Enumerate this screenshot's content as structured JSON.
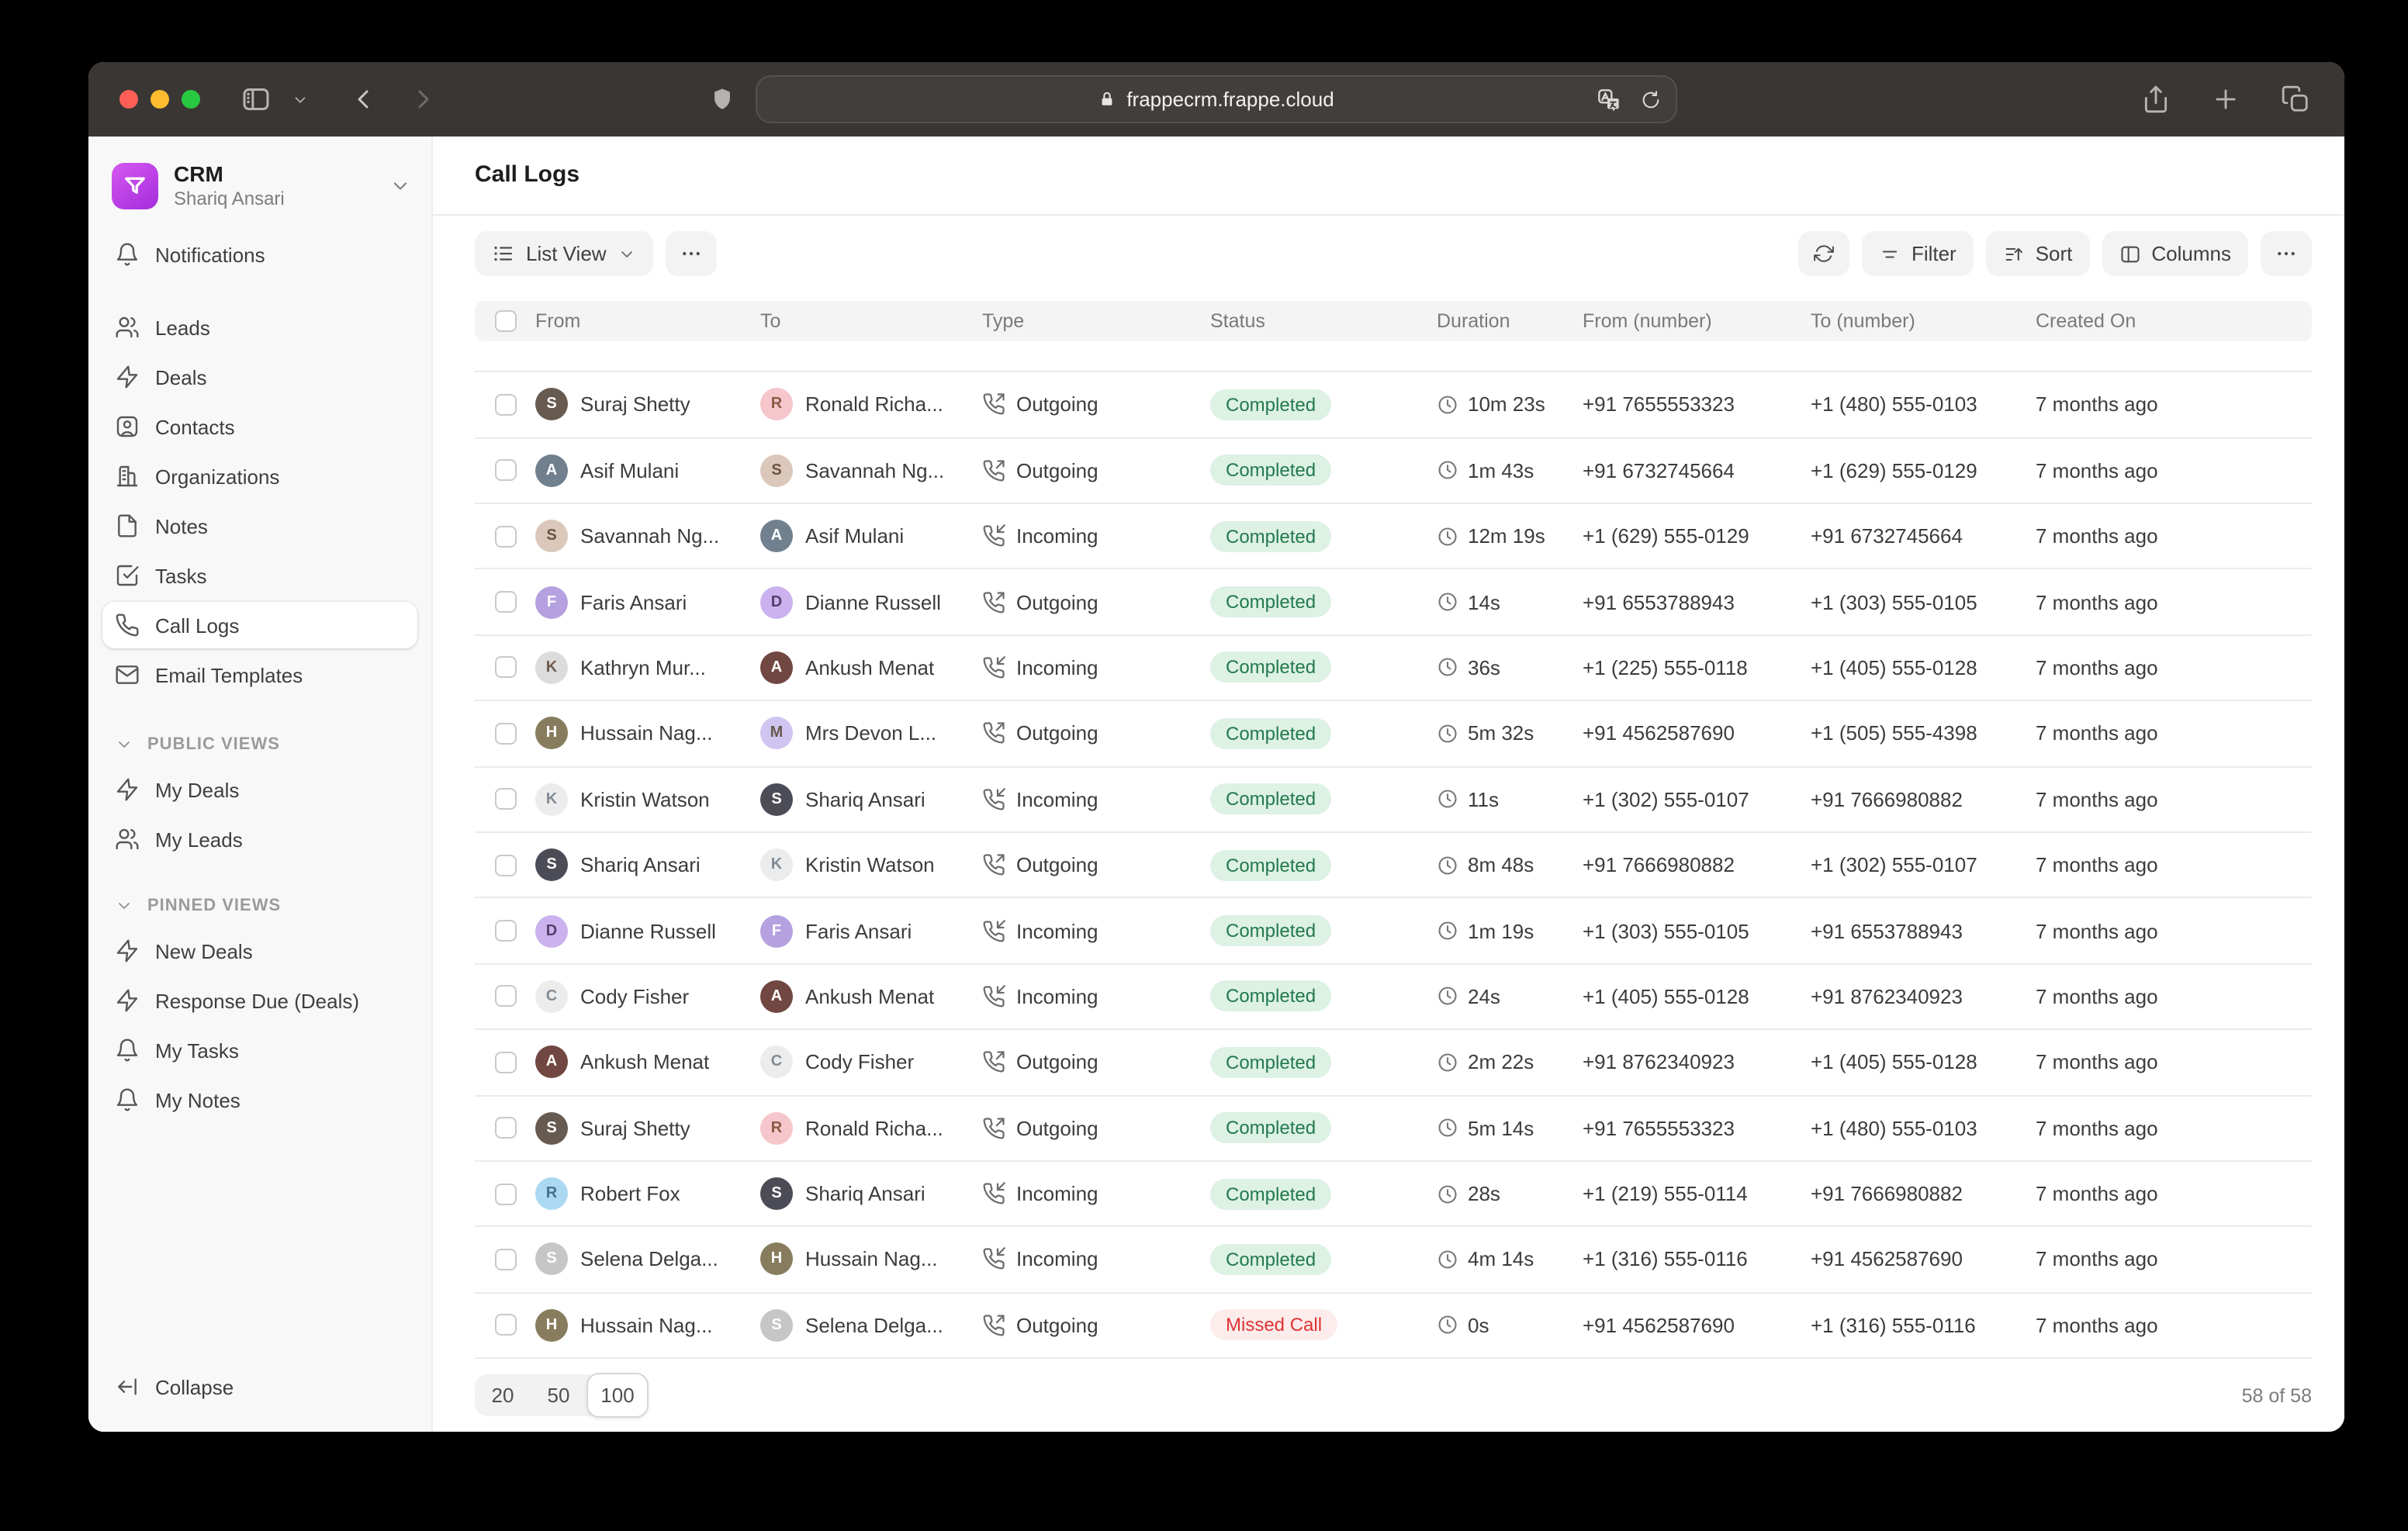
{
  "browser": {
    "url": "frappecrm.frappe.cloud"
  },
  "sidebar": {
    "workspace": {
      "name": "CRM",
      "user": "Shariq Ansari"
    },
    "nav": [
      {
        "label": "Notifications",
        "icon": "bell",
        "spacer_after": true
      },
      {
        "label": "Leads",
        "icon": "leads"
      },
      {
        "label": "Deals",
        "icon": "deals"
      },
      {
        "label": "Contacts",
        "icon": "contacts"
      },
      {
        "label": "Organizations",
        "icon": "organizations"
      },
      {
        "label": "Notes",
        "icon": "notes"
      },
      {
        "label": "Tasks",
        "icon": "tasks"
      },
      {
        "label": "Call Logs",
        "icon": "phone",
        "active": true
      },
      {
        "label": "Email Templates",
        "icon": "mail"
      }
    ],
    "sections": [
      {
        "title": "PUBLIC VIEWS",
        "items": [
          {
            "label": "My Deals",
            "icon": "deals"
          },
          {
            "label": "My Leads",
            "icon": "leads"
          }
        ]
      },
      {
        "title": "PINNED VIEWS",
        "items": [
          {
            "label": "New Deals",
            "icon": "deals"
          },
          {
            "label": "Response Due (Deals)",
            "icon": "deals"
          },
          {
            "label": "My Tasks",
            "icon": "bell"
          },
          {
            "label": "My Notes",
            "icon": "bell"
          }
        ]
      }
    ],
    "collapse_label": "Collapse"
  },
  "main": {
    "title": "Call Logs",
    "toolbar": {
      "view_label": "List View",
      "filter_label": "Filter",
      "sort_label": "Sort",
      "columns_label": "Columns"
    },
    "table": {
      "columns": [
        "From",
        "To",
        "Type",
        "Status",
        "Duration",
        "From (number)",
        "To (number)",
        "Created On"
      ],
      "rows": [
        {
          "from": {
            "name": "Suraj Shetty",
            "avatar": {
              "text": "S",
              "bg": "#675a50",
              "fg": "#ffffff"
            }
          },
          "to": {
            "name": "Ronald Richa...",
            "avatar": {
              "text": "R",
              "bg": "#f5c6cb",
              "fg": "#8a5a45"
            }
          },
          "type": "Outgoing",
          "status": "Completed",
          "duration": "10m 23s",
          "from_number": "+91 7655553323",
          "to_number": "+1 (480) 555-0103",
          "created": "7 months ago"
        },
        {
          "from": {
            "name": "Asif Mulani",
            "avatar": {
              "text": "A",
              "bg": "#71808f",
              "fg": "#ffffff"
            }
          },
          "to": {
            "name": "Savannah Ng...",
            "avatar": {
              "text": "S",
              "bg": "#dbc8ba",
              "fg": "#6e5340"
            }
          },
          "type": "Outgoing",
          "status": "Completed",
          "duration": "1m 43s",
          "from_number": "+91 6732745664",
          "to_number": "+1 (629) 555-0129",
          "created": "7 months ago"
        },
        {
          "from": {
            "name": "Savannah Ng...",
            "avatar": {
              "text": "S",
              "bg": "#dbc8ba",
              "fg": "#6e5340"
            }
          },
          "to": {
            "name": "Asif Mulani",
            "avatar": {
              "text": "A",
              "bg": "#71808f",
              "fg": "#ffffff"
            }
          },
          "type": "Incoming",
          "status": "Completed",
          "duration": "12m 19s",
          "from_number": "+1 (629) 555-0129",
          "to_number": "+91 6732745664",
          "created": "7 months ago"
        },
        {
          "from": {
            "name": "Faris Ansari",
            "avatar": {
              "text": "F",
              "bg": "#b5a0e0",
              "fg": "#ffffff"
            }
          },
          "to": {
            "name": "Dianne Russell",
            "avatar": {
              "text": "D",
              "bg": "#cbb2ef",
              "fg": "#53416b"
            }
          },
          "type": "Outgoing",
          "status": "Completed",
          "duration": "14s",
          "from_number": "+91 6553788943",
          "to_number": "+1 (303) 555-0105",
          "created": "7 months ago"
        },
        {
          "from": {
            "name": "Kathryn Mur...",
            "avatar": {
              "text": "K",
              "bg": "#dcdcdc",
              "fg": "#6d5c50"
            }
          },
          "to": {
            "name": "Ankush Menat",
            "avatar": {
              "text": "A",
              "bg": "#714741",
              "fg": "#ffffff"
            }
          },
          "type": "Incoming",
          "status": "Completed",
          "duration": "36s",
          "from_number": "+1 (225) 555-0118",
          "to_number": "+1 (405) 555-0128",
          "created": "7 months ago"
        },
        {
          "from": {
            "name": "Hussain Nag...",
            "avatar": {
              "text": "H",
              "bg": "#877d5e",
              "fg": "#ffffff"
            }
          },
          "to": {
            "name": "Mrs Devon L...",
            "avatar": {
              "text": "M",
              "bg": "#d0c4f1",
              "fg": "#66594b"
            }
          },
          "type": "Outgoing",
          "status": "Completed",
          "duration": "5m 32s",
          "from_number": "+91 4562587690",
          "to_number": "+1 (505) 555-4398",
          "created": "7 months ago"
        },
        {
          "from": {
            "name": "Kristin Watson",
            "avatar": {
              "text": "K",
              "bg": "#ececec",
              "fg": "#828c96"
            }
          },
          "to": {
            "name": "Shariq Ansari",
            "avatar": {
              "text": "S",
              "bg": "#4c4c56",
              "fg": "#ffffff"
            }
          },
          "type": "Incoming",
          "status": "Completed",
          "duration": "11s",
          "from_number": "+1 (302) 555-0107",
          "to_number": "+91 7666980882",
          "created": "7 months ago"
        },
        {
          "from": {
            "name": "Shariq Ansari",
            "avatar": {
              "text": "S",
              "bg": "#4c4c56",
              "fg": "#ffffff"
            }
          },
          "to": {
            "name": "Kristin Watson",
            "avatar": {
              "text": "K",
              "bg": "#ececec",
              "fg": "#828c96"
            }
          },
          "type": "Outgoing",
          "status": "Completed",
          "duration": "8m 48s",
          "from_number": "+91 7666980882",
          "to_number": "+1 (302) 555-0107",
          "created": "7 months ago"
        },
        {
          "from": {
            "name": "Dianne Russell",
            "avatar": {
              "text": "D",
              "bg": "#cbb2ef",
              "fg": "#53416b"
            }
          },
          "to": {
            "name": "Faris Ansari",
            "avatar": {
              "text": "F",
              "bg": "#b5a0e0",
              "fg": "#ffffff"
            }
          },
          "type": "Incoming",
          "status": "Completed",
          "duration": "1m 19s",
          "from_number": "+1 (303) 555-0105",
          "to_number": "+91 6553788943",
          "created": "7 months ago"
        },
        {
          "from": {
            "name": "Cody Fisher",
            "avatar": {
              "text": "C",
              "bg": "#ececec",
              "fg": "#828c96"
            }
          },
          "to": {
            "name": "Ankush Menat",
            "avatar": {
              "text": "A",
              "bg": "#714741",
              "fg": "#ffffff"
            }
          },
          "type": "Incoming",
          "status": "Completed",
          "duration": "24s",
          "from_number": "+1 (405) 555-0128",
          "to_number": "+91 8762340923",
          "created": "7 months ago"
        },
        {
          "from": {
            "name": "Ankush Menat",
            "avatar": {
              "text": "A",
              "bg": "#714741",
              "fg": "#ffffff"
            }
          },
          "to": {
            "name": "Cody Fisher",
            "avatar": {
              "text": "C",
              "bg": "#ececec",
              "fg": "#828c96"
            }
          },
          "type": "Outgoing",
          "status": "Completed",
          "duration": "2m 22s",
          "from_number": "+91 8762340923",
          "to_number": "+1 (405) 555-0128",
          "created": "7 months ago"
        },
        {
          "from": {
            "name": "Suraj Shetty",
            "avatar": {
              "text": "S",
              "bg": "#675a50",
              "fg": "#ffffff"
            }
          },
          "to": {
            "name": "Ronald Richa...",
            "avatar": {
              "text": "R",
              "bg": "#f5c6cb",
              "fg": "#8a5a45"
            }
          },
          "type": "Outgoing",
          "status": "Completed",
          "duration": "5m 14s",
          "from_number": "+91 7655553323",
          "to_number": "+1 (480) 555-0103",
          "created": "7 months ago"
        },
        {
          "from": {
            "name": "Robert Fox",
            "avatar": {
              "text": "R",
              "bg": "#abd9f2",
              "fg": "#45708c"
            }
          },
          "to": {
            "name": "Shariq Ansari",
            "avatar": {
              "text": "S",
              "bg": "#4c4c56",
              "fg": "#ffffff"
            }
          },
          "type": "Incoming",
          "status": "Completed",
          "duration": "28s",
          "from_number": "+1 (219) 555-0114",
          "to_number": "+91 7666980882",
          "created": "7 months ago"
        },
        {
          "from": {
            "name": "Selena Delga...",
            "avatar": {
              "text": "S",
              "bg": "#c6c6c6",
              "fg": "#ffffff"
            }
          },
          "to": {
            "name": "Hussain Nag...",
            "avatar": {
              "text": "H",
              "bg": "#877d5e",
              "fg": "#ffffff"
            }
          },
          "type": "Incoming",
          "status": "Completed",
          "duration": "4m 14s",
          "from_number": "+1 (316) 555-0116",
          "to_number": "+91 4562587690",
          "created": "7 months ago"
        },
        {
          "from": {
            "name": "Hussain Nag...",
            "avatar": {
              "text": "H",
              "bg": "#877d5e",
              "fg": "#ffffff"
            }
          },
          "to": {
            "name": "Selena Delga...",
            "avatar": {
              "text": "S",
              "bg": "#c6c6c6",
              "fg": "#ffffff"
            }
          },
          "type": "Outgoing",
          "status": "Missed Call",
          "duration": "0s",
          "from_number": "+91 4562587690",
          "to_number": "+1 (316) 555-0116",
          "created": "7 months ago"
        }
      ]
    },
    "pagination": {
      "sizes": [
        "20",
        "50",
        "100"
      ],
      "active": "100",
      "count": "58 of 58"
    }
  },
  "colors": {
    "accent": "#b13bd6",
    "status_completed_text": "#23794e",
    "status_completed_bg": "#ddf1e4",
    "status_missed_text": "#df3333",
    "status_missed_bg": "#fcecec"
  }
}
